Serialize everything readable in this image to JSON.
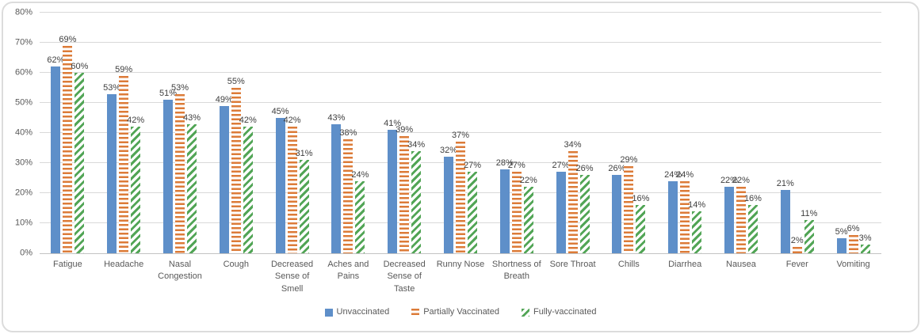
{
  "chart_data": {
    "type": "bar",
    "title": "",
    "xlabel": "",
    "ylabel": "",
    "categories": [
      "Fatigue",
      "Headache",
      "Nasal Congestion",
      "Cough",
      "Decreased Sense of Smell",
      "Aches and Pains",
      "Decreased Sense of Taste",
      "Runny Nose",
      "Shortness of Breath",
      "Sore Throat",
      "Chills",
      "Diarrhea",
      "Nausea",
      "Fever",
      "Vomiting"
    ],
    "series": [
      {
        "name": "Unvaccinated",
        "color": "#5e8fc9",
        "pattern": "solid",
        "values": [
          62,
          53,
          51,
          49,
          45,
          43,
          41,
          32,
          28,
          27,
          26,
          24,
          22,
          21,
          5
        ]
      },
      {
        "name": "Partially Vaccinated",
        "color": "#dc7b38",
        "pattern": "horizontal-stripes",
        "values": [
          69,
          59,
          53,
          55,
          42,
          38,
          39,
          37,
          27,
          34,
          29,
          24,
          22,
          2,
          6
        ]
      },
      {
        "name": "Fully-vaccinated",
        "color": "#52a556",
        "pattern": "diagonal-stripes",
        "values": [
          60,
          42,
          43,
          42,
          31,
          24,
          34,
          27,
          22,
          26,
          16,
          14,
          16,
          11,
          3
        ]
      }
    ],
    "ylim": [
      0,
      80
    ],
    "y_ticks": [
      {
        "value": 0,
        "label": "0%"
      },
      {
        "value": 10,
        "label": "10%"
      },
      {
        "value": 20,
        "label": "20%"
      },
      {
        "value": 30,
        "label": "30%"
      },
      {
        "value": 40,
        "label": "40%"
      },
      {
        "value": 50,
        "label": "50%"
      },
      {
        "value": 60,
        "label": "60%"
      },
      {
        "value": 70,
        "label": "70%"
      },
      {
        "value": 80,
        "label": "80%"
      }
    ],
    "grid": true,
    "data_labels": true,
    "data_label_suffix": "%",
    "legend_position": "bottom"
  },
  "colors": {
    "gridline": "#d9d9d9",
    "baseline": "#c3c3c3",
    "axis_text": "#595959",
    "data_label_text": "#3f3f3f",
    "card_border": "#dcdcdc",
    "background": "#ffffff"
  }
}
